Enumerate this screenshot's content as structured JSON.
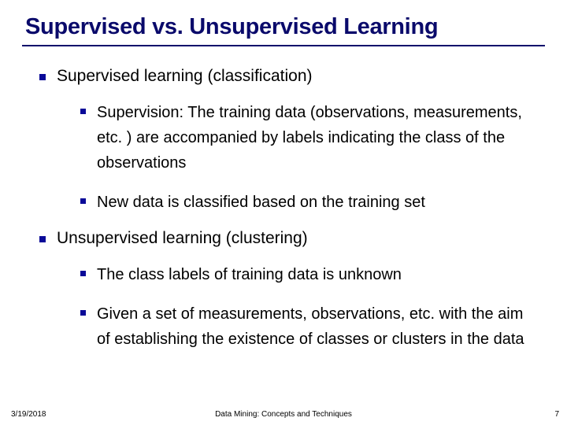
{
  "title": "Supervised vs. Unsupervised Learning",
  "colors": {
    "title": "#0a0a6b",
    "rule": "#0a0a6b",
    "bullet": "#0a0a98",
    "text": "#000000",
    "background": "#ffffff"
  },
  "fontsize": {
    "title": 29,
    "level1": 21,
    "level2": 20,
    "footer": 10
  },
  "items": [
    {
      "text": "Supervised learning (classification)",
      "sub": [
        "Supervision: The training data (observations, measurements, etc. ) are accompanied by labels indicating the class of the observations",
        "New data is classified based on the training set"
      ]
    },
    {
      "text": "Unsupervised learning (clustering)",
      "sub": [
        "The class labels of training data is unknown",
        "Given a set of measurements, observations, etc. with the aim of establishing the existence of classes or clusters in the data"
      ]
    }
  ],
  "footer": {
    "date": "3/19/2018",
    "center": "Data Mining: Concepts and Techniques",
    "page": "7"
  }
}
